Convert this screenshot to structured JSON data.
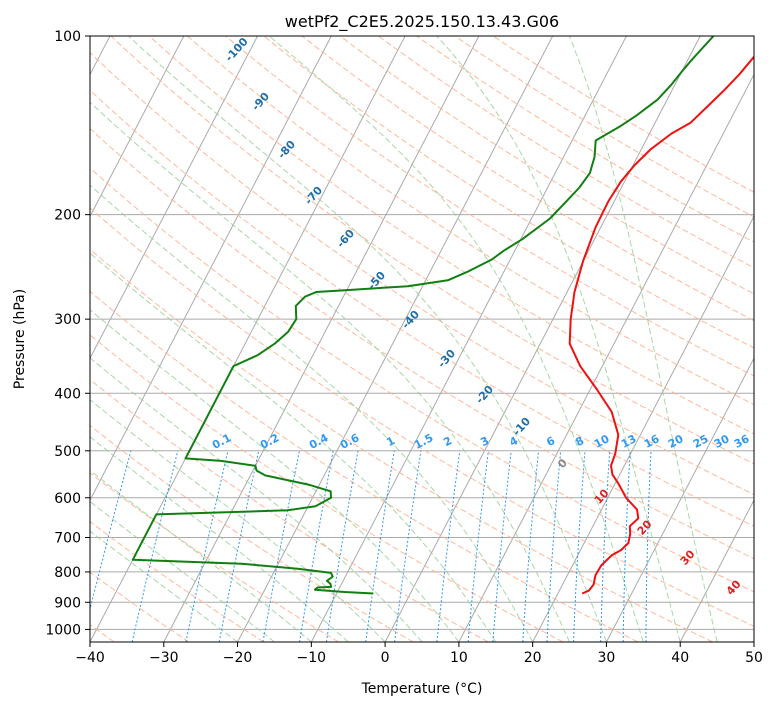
{
  "chart_data": {
    "type": "line",
    "title": "wetPf2_C2E5.2025.150.13.43.G06",
    "xlabel": "Temperature (°C)",
    "ylabel": "Pressure (hPa)",
    "xlim": [
      -40,
      50
    ],
    "ylim": [
      1050,
      100
    ],
    "y_scale": "log",
    "x_ticks": [
      "−40",
      "−30",
      "−20",
      "−10",
      "0",
      "10",
      "20",
      "30",
      "40",
      "50"
    ],
    "y_ticks": [
      {
        "value": 100,
        "label": "100"
      },
      {
        "value": 200,
        "label": "200"
      },
      {
        "value": 300,
        "label": "300"
      },
      {
        "value": 400,
        "label": "400"
      },
      {
        "value": 500,
        "label": "500"
      },
      {
        "value": 600,
        "label": "600"
      },
      {
        "value": 700,
        "label": "700"
      },
      {
        "value": 800,
        "label": "800"
      },
      {
        "value": 900,
        "label": "900"
      },
      {
        "value": 1000,
        "label": "1000"
      }
    ],
    "grid": true,
    "colors": {
      "temperature": "#ee1111",
      "dewpoint": "#117f11",
      "isotherm": "#aaaaaa",
      "dry_adiabat": "#ffb090",
      "moist_adiabat": "#99d099",
      "mixing_ratio": "#3399ee",
      "adiabat_label_dry": "#1f6faa",
      "adiabat_label_moist": "#dd2222",
      "zero_label": "#888888"
    },
    "series": [
      {
        "key": "temperature",
        "points": [
          [
            23.3,
            870
          ],
          [
            24.0,
            860
          ],
          [
            24.2,
            840
          ],
          [
            23.8,
            810
          ],
          [
            23.9,
            780
          ],
          [
            24.6,
            750
          ],
          [
            25.5,
            735
          ],
          [
            26.0,
            715
          ],
          [
            25.6,
            690
          ],
          [
            25.0,
            670
          ],
          [
            25.6,
            650
          ],
          [
            24.8,
            628
          ],
          [
            22.5,
            600
          ],
          [
            20.6,
            570
          ],
          [
            19.0,
            548
          ],
          [
            18.2,
            530
          ],
          [
            17.9,
            505
          ],
          [
            17.0,
            470
          ],
          [
            14.5,
            430
          ],
          [
            11.0,
            395
          ],
          [
            7.0,
            360
          ],
          [
            4.0,
            330
          ],
          [
            2.4,
            300
          ],
          [
            1.0,
            270
          ],
          [
            0.0,
            240
          ],
          [
            -0.7,
            210
          ],
          [
            -0.8,
            190
          ],
          [
            -0.5,
            176
          ],
          [
            0.2,
            165
          ],
          [
            1.3,
            155
          ],
          [
            3.0,
            146
          ],
          [
            4.8,
            140
          ],
          [
            6.0,
            131
          ],
          [
            7.0,
            124
          ],
          [
            8.0,
            116
          ],
          [
            8.8,
            108
          ],
          [
            10.6,
            103
          ],
          [
            12.8,
            100
          ]
        ]
      },
      {
        "key": "dewpoint",
        "points": [
          [
            -5.0,
            870
          ],
          [
            -9.0,
            865
          ],
          [
            -13.2,
            857
          ],
          [
            -13.0,
            850
          ],
          [
            -11.2,
            848
          ],
          [
            -11.5,
            838
          ],
          [
            -12.2,
            828
          ],
          [
            -11.7,
            815
          ],
          [
            -12.2,
            803
          ],
          [
            -17.0,
            790
          ],
          [
            -25.0,
            775
          ],
          [
            -40.0,
            763
          ],
          [
            -40.0,
            640
          ],
          [
            -22.5,
            630
          ],
          [
            -19.0,
            620
          ],
          [
            -17.5,
            600
          ],
          [
            -18.0,
            585
          ],
          [
            -21.5,
            570
          ],
          [
            -28.0,
            550
          ],
          [
            -29.5,
            540
          ],
          [
            -30.0,
            530
          ],
          [
            -35.0,
            520
          ],
          [
            -40.0,
            515
          ],
          [
            -40.0,
            360
          ],
          [
            -37.5,
            345
          ],
          [
            -36.0,
            330
          ],
          [
            -35.0,
            315
          ],
          [
            -34.8,
            300
          ],
          [
            -35.8,
            285
          ],
          [
            -35.2,
            275
          ],
          [
            -34.0,
            270
          ],
          [
            -30.0,
            268
          ],
          [
            -22.0,
            264
          ],
          [
            -17.0,
            258
          ],
          [
            -15.0,
            250
          ],
          [
            -12.5,
            238
          ],
          [
            -11.5,
            230
          ],
          [
            -9.8,
            220
          ],
          [
            -7.5,
            203
          ],
          [
            -6.5,
            190
          ],
          [
            -5.7,
            180
          ],
          [
            -5.5,
            175
          ],
          [
            -5.3,
            170
          ],
          [
            -5.5,
            166
          ],
          [
            -5.8,
            160
          ],
          [
            -6.8,
            150
          ],
          [
            -4.5,
            142
          ],
          [
            -3.0,
            136
          ],
          [
            -1.3,
            128
          ],
          [
            -0.5,
            121
          ],
          [
            0.0,
            115
          ],
          [
            0.5,
            110
          ],
          [
            1.0,
            106
          ],
          [
            1.8,
            100
          ]
        ]
      }
    ],
    "dry_adiabat_labels": [
      {
        "label": "-100",
        "value": -100
      },
      {
        "label": "-90",
        "value": -90
      },
      {
        "label": "-80",
        "value": -80
      },
      {
        "label": "-70",
        "value": -70
      },
      {
        "label": "-60",
        "value": -60
      },
      {
        "label": "-50",
        "value": -50
      },
      {
        "label": "-40",
        "value": -40
      },
      {
        "label": "-30",
        "value": -30
      },
      {
        "label": "-20",
        "value": -20
      },
      {
        "label": "-10",
        "value": -10
      }
    ],
    "moist_adiabat_labels": [
      {
        "label": "0",
        "value": 0
      },
      {
        "label": "10",
        "value": 10
      },
      {
        "label": "20",
        "value": 20
      },
      {
        "label": "30",
        "value": 30
      },
      {
        "label": "40",
        "value": 40
      }
    ],
    "mixing_ratio_labels": [
      "0.1",
      "0.2",
      "0.4",
      "0.6",
      "1",
      "1.5",
      "2",
      "3",
      "4",
      "6",
      "8",
      "10",
      "13",
      "16",
      "20",
      "25",
      "30",
      "36"
    ],
    "mixing_ratio_values": [
      0.1,
      0.2,
      0.4,
      0.6,
      1,
      1.5,
      2,
      3,
      4,
      6,
      8,
      10,
      13,
      16,
      20,
      25,
      30,
      36
    ]
  }
}
